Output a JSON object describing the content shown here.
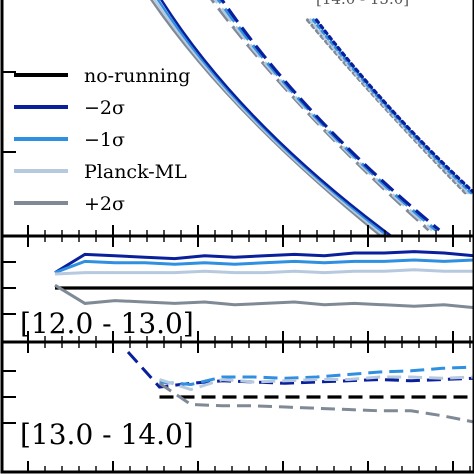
{
  "chart_data": [
    {
      "type": "line",
      "panel": "main",
      "top_label": "[14.0 - 15.0]",
      "legend": {
        "placement": "left",
        "entries": [
          {
            "label": "no-running",
            "color": "#000000"
          },
          {
            "label": "−2σ",
            "color": "#0a1f9c"
          },
          {
            "label": "−1σ",
            "color": "#2f8fe0"
          },
          {
            "label": "Planck-ML",
            "color": "#b7c9df"
          },
          {
            "label": "+2σ",
            "color": "#7f8a96"
          }
        ]
      },
      "series": [
        {
          "name": "solid-steep",
          "style": "solid",
          "colors": [
            "#7f8a96",
            "#b7c9df",
            "#2f8fe0",
            "#0a1f9c"
          ]
        },
        {
          "name": "dashed-mid",
          "style": "dashed",
          "colors": [
            "#7f8a96",
            "#b7c9df",
            "#2f8fe0",
            "#0a1f9c"
          ]
        },
        {
          "name": "dotted-right",
          "style": "dotted",
          "colors": [
            "#7f8a96",
            "#b7c9df",
            "#2f8fe0",
            "#0a1f9c"
          ]
        }
      ]
    },
    {
      "type": "line",
      "panel": "ratio-1",
      "range_label": "[12.0 - 13.0]",
      "style": "solid",
      "x": [
        1,
        2,
        3,
        4,
        5,
        6,
        7,
        8,
        9,
        10,
        11,
        12,
        13,
        14,
        15
      ],
      "series": [
        {
          "color": "#000000",
          "values": [
            0,
            0,
            0,
            0,
            0,
            0,
            0,
            0,
            0,
            0,
            0,
            0,
            0,
            0,
            0
          ]
        },
        {
          "color": "#0a1f9c",
          "values": [
            0.55,
            1.2,
            1.15,
            1.1,
            1.05,
            1.15,
            1.1,
            1.15,
            1.2,
            1.15,
            1.25,
            1.25,
            1.3,
            1.25,
            1.15
          ]
        },
        {
          "color": "#2f8fe0",
          "values": [
            0.55,
            0.95,
            0.9,
            0.9,
            0.85,
            0.9,
            0.85,
            0.9,
            0.95,
            0.9,
            0.95,
            0.95,
            1.0,
            0.95,
            1.0
          ]
        },
        {
          "color": "#b7c9df",
          "values": [
            0.5,
            0.55,
            0.55,
            0.55,
            0.55,
            0.6,
            0.55,
            0.55,
            0.6,
            0.55,
            0.6,
            0.6,
            0.65,
            0.6,
            0.6
          ]
        },
        {
          "color": "#7f8a96",
          "values": [
            0.1,
            -0.55,
            -0.45,
            -0.5,
            -0.55,
            -0.5,
            -0.6,
            -0.55,
            -0.5,
            -0.6,
            -0.55,
            -0.6,
            -0.65,
            -0.6,
            -0.7
          ]
        }
      ]
    },
    {
      "type": "line",
      "panel": "ratio-2",
      "range_label": "[13.0 - 14.0]",
      "style": "dashed",
      "x": [
        1,
        2,
        3,
        4,
        5,
        6,
        7,
        8,
        9,
        10,
        11,
        12
      ],
      "series": [
        {
          "color": "#000000",
          "values": [
            null,
            0,
            0,
            0,
            0,
            0,
            0,
            0,
            0,
            0,
            0,
            0
          ]
        },
        {
          "color": "#0a1f9c",
          "values": [
            1.8,
            0.4,
            0.55,
            0.65,
            0.6,
            0.55,
            0.6,
            0.65,
            0.7,
            0.65,
            0.7,
            0.75
          ]
        },
        {
          "color": "#2f8fe0",
          "values": [
            null,
            0.6,
            0.5,
            0.8,
            0.8,
            0.75,
            0.8,
            0.9,
            1.0,
            1.05,
            1.15,
            1.2
          ]
        },
        {
          "color": "#b7c9df",
          "values": [
            null,
            0.7,
            0.3,
            0.7,
            0.6,
            0.65,
            0.7,
            0.7,
            0.8,
            0.8,
            0.75,
            0.8
          ]
        },
        {
          "color": "#7f8a96",
          "values": [
            null,
            0.55,
            -0.3,
            -0.35,
            -0.35,
            -0.4,
            -0.45,
            -0.5,
            -0.55,
            -0.55,
            -0.75,
            -1.0
          ]
        }
      ]
    }
  ]
}
